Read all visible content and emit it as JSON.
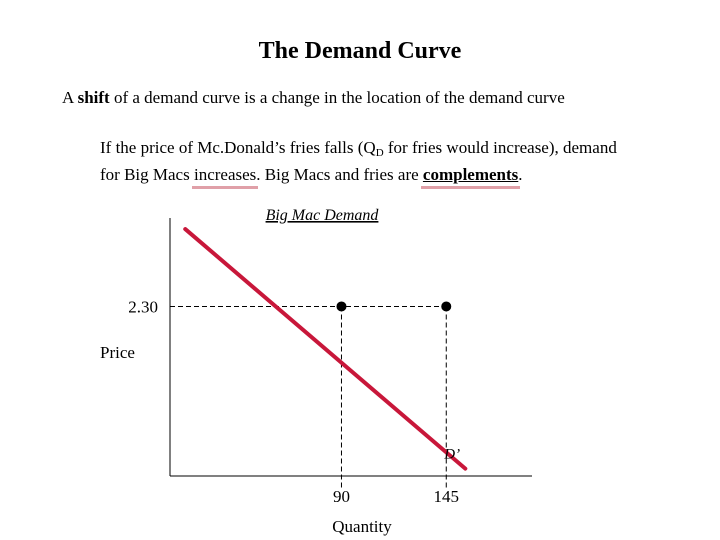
{
  "title": "The Demand Curve",
  "intro": {
    "pre": "A ",
    "bold": "shift",
    "post": " of a demand curve is a change in the location of the demand curve"
  },
  "paragraph": {
    "line1_pre": "If the price of Mc.Donald’s fries falls (Q",
    "line1_sub": "D",
    "line1_post": " for fries would increase), demand",
    "line2_pre": "for Big Macs ",
    "line2_hl1": "increases",
    "line2_mid": ". Big Macs and fries are ",
    "line2_hl2": "complements",
    "line2_post": "."
  },
  "chart_data": {
    "type": "line",
    "title": "Big Mac Demand",
    "ylabel": "Price",
    "xlabel": "Quantity",
    "xlim": [
      0,
      190
    ],
    "ylim": [
      0,
      3.5
    ],
    "series": [
      {
        "name": "",
        "color": "#c8173a",
        "x": [
          8,
          155
        ],
        "y": [
          3.35,
          0.1
        ]
      }
    ],
    "points": [
      {
        "x": 90,
        "y": 2.3
      },
      {
        "x": 145,
        "y": 2.3
      }
    ],
    "y_ticks": [
      {
        "value": 2.3,
        "label": "2.30"
      }
    ],
    "x_ticks": [
      {
        "value": 90,
        "label": "90"
      },
      {
        "value": 145,
        "label": "145"
      }
    ],
    "curve_label": "D’",
    "curve_label_at": {
      "x": 145,
      "y": 0.2
    },
    "colors": {
      "curve": "#c8173a",
      "axis": "#000000"
    }
  }
}
